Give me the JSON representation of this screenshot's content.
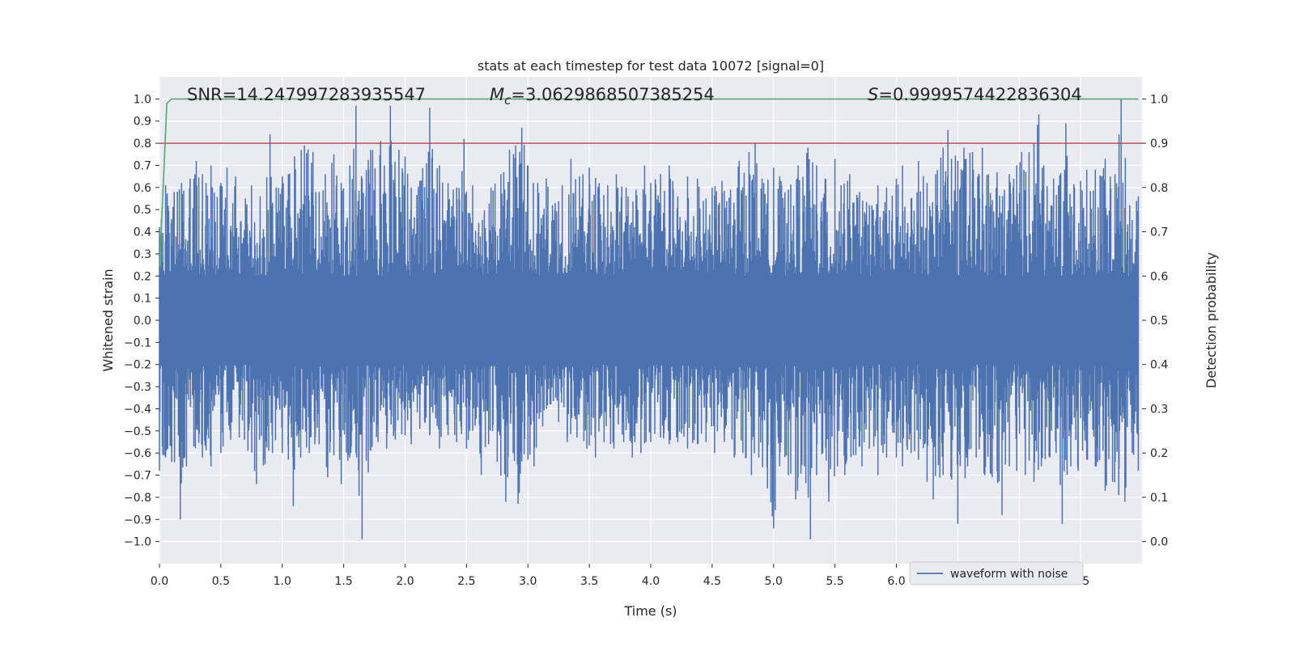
{
  "chart_data": {
    "type": "line",
    "title": "stats at each timestep for test data 10072 [signal=0]",
    "xlabel": "Time (s)",
    "ylabel": "Whitened strain",
    "ylabel_right": "Detection probability",
    "xlim": [
      0.0,
      8.0
    ],
    "ylim": [
      -1.1,
      1.1
    ],
    "ylim_right": [
      -0.05,
      1.05
    ],
    "x_ticks": [
      "0.0",
      "0.5",
      "1.0",
      "1.5",
      "2.0",
      "2.5",
      "3.0",
      "3.5",
      "4.0",
      "4.5",
      "5.0",
      "5.5",
      "6.0",
      "6.5",
      "7.0",
      "7.5"
    ],
    "y_ticks": [
      "1.0",
      "0.9",
      "0.8",
      "0.7",
      "0.6",
      "0.5",
      "0.4",
      "0.3",
      "0.2",
      "0.1",
      "0.0",
      "−0.1",
      "−0.2",
      "−0.3",
      "−0.4",
      "−0.5",
      "−0.6",
      "−0.7",
      "−0.8",
      "−0.9",
      "−1.0"
    ],
    "y_ticks_right": [
      "1.0",
      "0.9",
      "0.8",
      "0.7",
      "0.6",
      "0.5",
      "0.4",
      "0.3",
      "0.2",
      "0.1",
      "0.0"
    ],
    "grid": true,
    "colors": {
      "waveform": "#4c72b0",
      "probability": "#55a868",
      "threshold": "#c44e52",
      "background": "#eaeaf2",
      "grid": "#ffffff"
    },
    "annotations": {
      "snr": "SNR=14.247997283935547",
      "mc_symbol": "M",
      "mc_sub": "c",
      "mc_value": "=3.0629868507385254",
      "s_symbol": "S",
      "s_value": "=0.9999574422836304"
    },
    "legend": {
      "label": "waveform with noise",
      "placement": "lower-right"
    },
    "series": [
      {
        "name": "waveform with noise",
        "axis": "left",
        "core_band": [
          -0.2,
          0.2
        ],
        "upper_envelope": [
          [
            0.0,
            0.42
          ],
          [
            0.05,
            0.61
          ],
          [
            0.12,
            0.58
          ],
          [
            0.18,
            0.62
          ],
          [
            0.25,
            0.64
          ],
          [
            0.3,
            0.72
          ],
          [
            0.35,
            0.66
          ],
          [
            0.42,
            0.7
          ],
          [
            0.5,
            0.62
          ],
          [
            0.55,
            0.69
          ],
          [
            0.62,
            0.65
          ],
          [
            0.7,
            0.55
          ],
          [
            0.75,
            0.61
          ],
          [
            0.82,
            0.56
          ],
          [
            0.9,
            0.84
          ],
          [
            0.95,
            0.6
          ],
          [
            1.0,
            0.65
          ],
          [
            1.05,
            0.66
          ],
          [
            1.1,
            0.74
          ],
          [
            1.18,
            0.79
          ],
          [
            1.25,
            0.76
          ],
          [
            1.3,
            0.58
          ],
          [
            1.35,
            0.66
          ],
          [
            1.42,
            0.75
          ],
          [
            1.48,
            0.62
          ],
          [
            1.55,
            0.7
          ],
          [
            1.6,
            0.97
          ],
          [
            1.65,
            0.64
          ],
          [
            1.72,
            0.77
          ],
          [
            1.8,
            0.81
          ],
          [
            1.88,
            0.97
          ],
          [
            1.95,
            0.77
          ],
          [
            2.0,
            0.74
          ],
          [
            2.05,
            0.6
          ],
          [
            2.12,
            0.63
          ],
          [
            2.2,
            0.96
          ],
          [
            2.28,
            0.7
          ],
          [
            2.35,
            0.62
          ],
          [
            2.42,
            0.6
          ],
          [
            2.48,
            0.82
          ],
          [
            2.55,
            0.61
          ],
          [
            2.6,
            0.44
          ],
          [
            2.7,
            0.6
          ],
          [
            2.78,
            0.66
          ],
          [
            2.85,
            0.77
          ],
          [
            2.9,
            0.79
          ],
          [
            2.95,
            0.87
          ],
          [
            3.0,
            0.7
          ],
          [
            3.08,
            0.62
          ],
          [
            3.15,
            0.64
          ],
          [
            3.2,
            0.52
          ],
          [
            3.28,
            0.61
          ],
          [
            3.35,
            0.73
          ],
          [
            3.42,
            0.65
          ],
          [
            3.5,
            0.69
          ],
          [
            3.58,
            0.62
          ],
          [
            3.65,
            0.61
          ],
          [
            3.72,
            0.66
          ],
          [
            3.8,
            0.6
          ],
          [
            3.88,
            0.59
          ],
          [
            3.95,
            0.7
          ],
          [
            4.0,
            0.62
          ],
          [
            4.08,
            0.66
          ],
          [
            4.15,
            0.7
          ],
          [
            4.22,
            0.56
          ],
          [
            4.3,
            0.65
          ],
          [
            4.38,
            0.64
          ],
          [
            4.45,
            0.55
          ],
          [
            4.5,
            0.6
          ],
          [
            4.58,
            0.63
          ],
          [
            4.65,
            0.59
          ],
          [
            4.72,
            0.72
          ],
          [
            4.8,
            0.76
          ],
          [
            4.85,
            0.8
          ],
          [
            4.92,
            0.62
          ],
          [
            5.0,
            0.69
          ],
          [
            5.05,
            0.65
          ],
          [
            5.12,
            0.59
          ],
          [
            5.2,
            0.7
          ],
          [
            5.28,
            0.78
          ],
          [
            5.35,
            0.7
          ],
          [
            5.42,
            0.64
          ],
          [
            5.5,
            0.73
          ],
          [
            5.55,
            0.61
          ],
          [
            5.62,
            0.66
          ],
          [
            5.7,
            0.58
          ],
          [
            5.78,
            0.52
          ],
          [
            5.85,
            0.61
          ],
          [
            5.92,
            0.6
          ],
          [
            6.0,
            0.64
          ],
          [
            6.05,
            0.7
          ],
          [
            6.12,
            0.55
          ],
          [
            6.18,
            0.72
          ],
          [
            6.25,
            0.62
          ],
          [
            6.32,
            0.66
          ],
          [
            6.38,
            0.78
          ],
          [
            6.42,
            0.86
          ],
          [
            6.5,
            0.72
          ],
          [
            6.55,
            0.78
          ],
          [
            6.62,
            0.76
          ],
          [
            6.7,
            0.78
          ],
          [
            6.75,
            0.66
          ],
          [
            6.82,
            0.67
          ],
          [
            6.88,
            0.59
          ],
          [
            6.92,
            0.66
          ],
          [
            6.98,
            0.7
          ],
          [
            7.02,
            0.76
          ],
          [
            7.08,
            0.76
          ],
          [
            7.12,
            0.8
          ],
          [
            7.16,
            0.93
          ],
          [
            7.2,
            0.7
          ],
          [
            7.28,
            0.64
          ],
          [
            7.32,
            0.61
          ],
          [
            7.38,
            0.89
          ],
          [
            7.45,
            0.6
          ],
          [
            7.5,
            0.63
          ],
          [
            7.55,
            0.68
          ],
          [
            7.62,
            0.68
          ],
          [
            7.7,
            0.73
          ],
          [
            7.78,
            0.66
          ],
          [
            7.83,
            1.0
          ],
          [
            7.9,
            0.52
          ],
          [
            7.97,
            0.56
          ]
        ],
        "lower_envelope": [
          [
            0.0,
            -0.68
          ],
          [
            0.05,
            -0.62
          ],
          [
            0.1,
            -0.64
          ],
          [
            0.17,
            -0.9
          ],
          [
            0.22,
            -0.66
          ],
          [
            0.28,
            -0.57
          ],
          [
            0.35,
            -0.62
          ],
          [
            0.42,
            -0.66
          ],
          [
            0.5,
            -0.6
          ],
          [
            0.58,
            -0.54
          ],
          [
            0.65,
            -0.53
          ],
          [
            0.72,
            -0.59
          ],
          [
            0.79,
            -0.74
          ],
          [
            0.86,
            -0.65
          ],
          [
            0.92,
            -0.6
          ],
          [
            1.0,
            -0.6
          ],
          [
            1.05,
            -0.63
          ],
          [
            1.09,
            -0.84
          ],
          [
            1.15,
            -0.62
          ],
          [
            1.22,
            -0.6
          ],
          [
            1.3,
            -0.56
          ],
          [
            1.37,
            -0.71
          ],
          [
            1.42,
            -0.61
          ],
          [
            1.48,
            -0.74
          ],
          [
            1.55,
            -0.62
          ],
          [
            1.6,
            -0.6
          ],
          [
            1.65,
            -0.99
          ],
          [
            1.72,
            -0.59
          ],
          [
            1.78,
            -0.55
          ],
          [
            1.85,
            -0.58
          ],
          [
            1.92,
            -0.54
          ],
          [
            2.0,
            -0.52
          ],
          [
            2.05,
            -0.56
          ],
          [
            2.12,
            -0.49
          ],
          [
            2.2,
            -0.52
          ],
          [
            2.28,
            -0.58
          ],
          [
            2.35,
            -0.52
          ],
          [
            2.42,
            -0.55
          ],
          [
            2.5,
            -0.58
          ],
          [
            2.55,
            -0.5
          ],
          [
            2.62,
            -0.7
          ],
          [
            2.68,
            -0.56
          ],
          [
            2.75,
            -0.64
          ],
          [
            2.82,
            -0.82
          ],
          [
            2.88,
            -0.6
          ],
          [
            2.92,
            -0.83
          ],
          [
            3.0,
            -0.63
          ],
          [
            3.05,
            -0.66
          ],
          [
            3.12,
            -0.48
          ],
          [
            3.18,
            -0.38
          ],
          [
            3.25,
            -0.46
          ],
          [
            3.32,
            -0.55
          ],
          [
            3.4,
            -0.53
          ],
          [
            3.48,
            -0.58
          ],
          [
            3.55,
            -0.62
          ],
          [
            3.62,
            -0.55
          ],
          [
            3.7,
            -0.58
          ],
          [
            3.78,
            -0.55
          ],
          [
            3.85,
            -0.62
          ],
          [
            3.92,
            -0.6
          ],
          [
            4.0,
            -0.55
          ],
          [
            4.08,
            -0.53
          ],
          [
            4.15,
            -0.56
          ],
          [
            4.22,
            -0.55
          ],
          [
            4.3,
            -0.58
          ],
          [
            4.38,
            -0.56
          ],
          [
            4.45,
            -0.55
          ],
          [
            4.52,
            -0.6
          ],
          [
            4.6,
            -0.55
          ],
          [
            4.68,
            -0.62
          ],
          [
            4.75,
            -0.6
          ],
          [
            4.82,
            -0.7
          ],
          [
            4.88,
            -0.62
          ],
          [
            4.95,
            -0.76
          ],
          [
            5.0,
            -0.94
          ],
          [
            5.05,
            -0.66
          ],
          [
            5.12,
            -0.7
          ],
          [
            5.18,
            -0.81
          ],
          [
            5.25,
            -0.66
          ],
          [
            5.3,
            -0.99
          ],
          [
            5.35,
            -0.7
          ],
          [
            5.4,
            -0.6
          ],
          [
            5.45,
            -0.82
          ],
          [
            5.52,
            -0.66
          ],
          [
            5.58,
            -0.7
          ],
          [
            5.65,
            -0.61
          ],
          [
            5.72,
            -0.66
          ],
          [
            5.78,
            -0.58
          ],
          [
            5.85,
            -0.7
          ],
          [
            5.92,
            -0.62
          ],
          [
            6.0,
            -0.62
          ],
          [
            6.05,
            -0.66
          ],
          [
            6.12,
            -0.6
          ],
          [
            6.18,
            -0.63
          ],
          [
            6.25,
            -0.73
          ],
          [
            6.3,
            -0.81
          ],
          [
            6.38,
            -0.7
          ],
          [
            6.45,
            -0.72
          ],
          [
            6.5,
            -0.92
          ],
          [
            6.58,
            -0.66
          ],
          [
            6.65,
            -0.62
          ],
          [
            6.72,
            -0.7
          ],
          [
            6.78,
            -0.71
          ],
          [
            6.86,
            -0.88
          ],
          [
            6.92,
            -0.66
          ],
          [
            6.98,
            -0.68
          ],
          [
            7.05,
            -0.7
          ],
          [
            7.12,
            -0.73
          ],
          [
            7.18,
            -0.66
          ],
          [
            7.25,
            -0.62
          ],
          [
            7.3,
            -0.6
          ],
          [
            7.35,
            -0.92
          ],
          [
            7.42,
            -0.66
          ],
          [
            7.48,
            -0.68
          ],
          [
            7.55,
            -0.63
          ],
          [
            7.62,
            -0.66
          ],
          [
            7.7,
            -0.77
          ],
          [
            7.76,
            -0.73
          ],
          [
            7.81,
            -0.79
          ],
          [
            7.86,
            -0.82
          ],
          [
            7.92,
            -0.6
          ],
          [
            7.97,
            -0.68
          ]
        ]
      },
      {
        "name": "detection probability",
        "axis": "right",
        "points": [
          [
            0.0,
            0.62
          ],
          [
            0.03,
            0.8
          ],
          [
            0.06,
            0.99
          ],
          [
            0.1,
            1.0
          ],
          [
            7.97,
            1.0
          ]
        ]
      },
      {
        "name": "threshold",
        "axis": "left",
        "points": [
          [
            0.0,
            0.8
          ],
          [
            8.0,
            0.8
          ]
        ]
      }
    ]
  }
}
